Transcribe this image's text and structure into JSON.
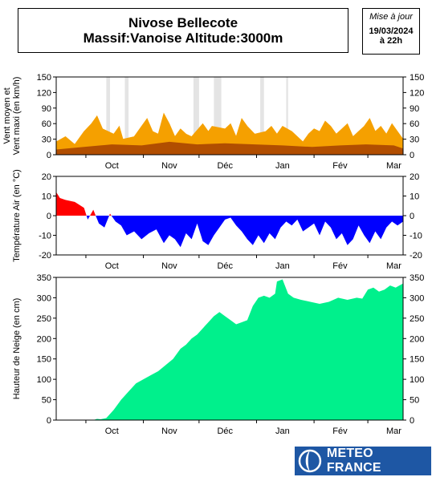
{
  "header": {
    "title_line1": "Nivose Bellecote",
    "title_line2": "Massif:Vanoise Altitude:3000m",
    "update_label": "Mise à jour",
    "update_date": "19/03/2024",
    "update_time": "à 22h"
  },
  "logo": {
    "text": "METEO FRANCE"
  },
  "colors": {
    "wind_max": "#f5a000",
    "wind_mean": "#9a3300",
    "temp_positive": "#ff0000",
    "temp_negative": "#0000ff",
    "snow": "#00f08c",
    "missing": "#e4e4e4",
    "logo_bg": "#1e57a4"
  },
  "chart_data": [
    {
      "type": "area",
      "ylabel": "Vent moyen et\nVent maxi (en km/h)",
      "ylabel_lines": [
        "Vent moyen et",
        "Vent maxi (en km/h)"
      ],
      "xlim": [
        "2023-09-15",
        "2024-03-20"
      ],
      "ylim": [
        0,
        150
      ],
      "yticks": [
        0,
        30,
        60,
        90,
        120,
        150
      ],
      "xticks": [
        {
          "label": "Oct",
          "date": "2023-10-15"
        },
        {
          "label": "Nov",
          "date": "2023-11-15"
        },
        {
          "label": "Déc",
          "date": "2023-12-15"
        },
        {
          "label": "Jan",
          "date": "2024-01-15"
        },
        {
          "label": "Fév",
          "date": "2024-02-15"
        },
        {
          "label": "Mar",
          "date": "2024-03-15"
        }
      ],
      "missing_periods": [
        [
          "2023-10-12",
          "2023-10-14"
        ],
        [
          "2023-10-22",
          "2023-10-24"
        ],
        [
          "2023-11-28",
          "2023-12-01"
        ],
        [
          "2023-12-09",
          "2023-12-13"
        ],
        [
          "2024-01-03",
          "2024-01-05"
        ],
        [
          "2024-01-17",
          "2024-01-18"
        ]
      ],
      "series": [
        {
          "name": "Vent maxi",
          "x": [
            "2023-09-15",
            "2023-09-20",
            "2023-09-25",
            "2023-09-30",
            "2023-10-04",
            "2023-10-07",
            "2023-10-10",
            "2023-10-16",
            "2023-10-19",
            "2023-10-21",
            "2023-10-27",
            "2023-10-31",
            "2023-11-03",
            "2023-11-06",
            "2023-11-09",
            "2023-11-12",
            "2023-11-15",
            "2023-11-18",
            "2023-11-21",
            "2023-11-24",
            "2023-11-27",
            "2023-12-03",
            "2023-12-06",
            "2023-12-08",
            "2023-12-15",
            "2023-12-18",
            "2023-12-21",
            "2023-12-24",
            "2023-12-27",
            "2023-12-31",
            "2024-01-06",
            "2024-01-09",
            "2024-01-12",
            "2024-01-15",
            "2024-01-20",
            "2024-01-23",
            "2024-01-26",
            "2024-01-29",
            "2024-02-01",
            "2024-02-04",
            "2024-02-07",
            "2024-02-10",
            "2024-02-13",
            "2024-02-16",
            "2024-02-19",
            "2024-02-22",
            "2024-02-25",
            "2024-02-28",
            "2024-03-02",
            "2024-03-05",
            "2024-03-08",
            "2024-03-11",
            "2024-03-14",
            "2024-03-17",
            "2024-03-20"
          ],
          "values": [
            25,
            35,
            20,
            45,
            60,
            75,
            50,
            40,
            55,
            30,
            35,
            55,
            70,
            45,
            40,
            80,
            60,
            35,
            50,
            40,
            35,
            60,
            45,
            55,
            50,
            60,
            35,
            70,
            55,
            40,
            45,
            55,
            40,
            55,
            45,
            35,
            25,
            40,
            50,
            45,
            65,
            55,
            40,
            50,
            60,
            35,
            45,
            55,
            70,
            45,
            55,
            40,
            60,
            45,
            30
          ]
        },
        {
          "name": "Vent moyen",
          "x": [
            "2023-09-15",
            "2023-09-30",
            "2023-10-15",
            "2023-10-31",
            "2023-11-15",
            "2023-11-30",
            "2023-12-15",
            "2023-12-31",
            "2024-01-15",
            "2024-01-31",
            "2024-02-15",
            "2024-02-29",
            "2024-03-15",
            "2024-03-20"
          ],
          "values": [
            10,
            15,
            20,
            18,
            25,
            20,
            22,
            20,
            18,
            15,
            18,
            20,
            18,
            12
          ]
        }
      ]
    },
    {
      "type": "area",
      "ylabel": "Température Air (en °C)",
      "xlim": [
        "2023-09-15",
        "2024-03-20"
      ],
      "ylim": [
        -20,
        20
      ],
      "yticks": [
        -20,
        -10,
        0,
        10,
        20
      ],
      "xticks": [
        {
          "label": "Oct",
          "date": "2023-10-15"
        },
        {
          "label": "Nov",
          "date": "2023-11-15"
        },
        {
          "label": "Déc",
          "date": "2023-12-15"
        },
        {
          "label": "Jan",
          "date": "2024-01-15"
        },
        {
          "label": "Fév",
          "date": "2024-02-15"
        },
        {
          "label": "Mar",
          "date": "2024-03-15"
        }
      ],
      "series": [
        {
          "name": "Température",
          "x": [
            "2023-09-15",
            "2023-09-17",
            "2023-09-20",
            "2023-09-25",
            "2023-09-30",
            "2023-10-02",
            "2023-10-05",
            "2023-10-08",
            "2023-10-11",
            "2023-10-14",
            "2023-10-17",
            "2023-10-20",
            "2023-10-23",
            "2023-10-27",
            "2023-10-31",
            "2023-11-04",
            "2023-11-08",
            "2023-11-12",
            "2023-11-15",
            "2023-11-18",
            "2023-11-21",
            "2023-11-24",
            "2023-11-27",
            "2023-11-30",
            "2023-12-03",
            "2023-12-06",
            "2023-12-09",
            "2023-12-12",
            "2023-12-15",
            "2023-12-18",
            "2023-12-21",
            "2023-12-24",
            "2023-12-27",
            "2023-12-30",
            "2024-01-02",
            "2024-01-05",
            "2024-01-08",
            "2024-01-11",
            "2024-01-14",
            "2024-01-17",
            "2024-01-20",
            "2024-01-23",
            "2024-01-26",
            "2024-01-29",
            "2024-02-01",
            "2024-02-04",
            "2024-02-07",
            "2024-02-10",
            "2024-02-13",
            "2024-02-16",
            "2024-02-19",
            "2024-02-22",
            "2024-02-25",
            "2024-02-28",
            "2024-03-02",
            "2024-03-05",
            "2024-03-08",
            "2024-03-11",
            "2024-03-14",
            "2024-03-17",
            "2024-03-20"
          ],
          "values": [
            12,
            9,
            8,
            7,
            4,
            -2,
            3,
            -4,
            -6,
            1,
            -3,
            -5,
            -10,
            -8,
            -12,
            -9,
            -7,
            -14,
            -10,
            -12,
            -16,
            -9,
            -12,
            -4,
            -13,
            -15,
            -10,
            -6,
            -2,
            -1,
            -5,
            -8,
            -12,
            -15,
            -10,
            -14,
            -9,
            -12,
            -6,
            -3,
            -5,
            -2,
            -8,
            -6,
            -4,
            -10,
            -3,
            -6,
            -12,
            -9,
            -15,
            -12,
            -5,
            -10,
            -14,
            -8,
            -12,
            -6,
            -3,
            -5,
            -3
          ]
        }
      ]
    },
    {
      "type": "area",
      "ylabel": "Hauteur de Neige (en cm)",
      "xlim": [
        "2023-09-15",
        "2024-03-20"
      ],
      "ylim": [
        0,
        350
      ],
      "yticks": [
        0,
        50,
        100,
        150,
        200,
        250,
        300,
        350
      ],
      "xticks": [
        {
          "label": "Oct",
          "date": "2023-10-15"
        },
        {
          "label": "Nov",
          "date": "2023-11-15"
        },
        {
          "label": "Déc",
          "date": "2023-12-15"
        },
        {
          "label": "Jan",
          "date": "2024-01-15"
        },
        {
          "label": "Fév",
          "date": "2024-02-15"
        },
        {
          "label": "Mar",
          "date": "2024-03-15"
        }
      ],
      "series": [
        {
          "name": "Hauteur de neige",
          "x": [
            "2023-09-15",
            "2023-09-25",
            "2023-10-05",
            "2023-10-07",
            "2023-10-09",
            "2023-10-12",
            "2023-10-16",
            "2023-10-20",
            "2023-10-24",
            "2023-10-28",
            "2023-11-01",
            "2023-11-05",
            "2023-11-09",
            "2023-11-13",
            "2023-11-17",
            "2023-11-21",
            "2023-11-24",
            "2023-11-27",
            "2023-11-30",
            "2023-12-03",
            "2023-12-06",
            "2023-12-09",
            "2023-12-12",
            "2023-12-15",
            "2023-12-18",
            "2023-12-21",
            "2023-12-24",
            "2023-12-27",
            "2023-12-30",
            "2024-01-02",
            "2024-01-05",
            "2024-01-08",
            "2024-01-11",
            "2024-01-12",
            "2024-01-15",
            "2024-01-18",
            "2024-01-21",
            "2024-01-25",
            "2024-01-30",
            "2024-02-04",
            "2024-02-09",
            "2024-02-14",
            "2024-02-19",
            "2024-02-24",
            "2024-02-27",
            "2024-03-01",
            "2024-03-04",
            "2024-03-07",
            "2024-03-10",
            "2024-03-13",
            "2024-03-16",
            "2024-03-18",
            "2024-03-20"
          ],
          "values": [
            0,
            0,
            0,
            3,
            2,
            5,
            25,
            50,
            70,
            90,
            100,
            110,
            120,
            135,
            150,
            175,
            185,
            200,
            210,
            225,
            240,
            255,
            265,
            255,
            245,
            235,
            240,
            245,
            280,
            300,
            305,
            300,
            310,
            340,
            345,
            310,
            300,
            295,
            290,
            285,
            290,
            300,
            295,
            300,
            298,
            320,
            325,
            315,
            320,
            330,
            325,
            330,
            335
          ]
        }
      ]
    }
  ]
}
